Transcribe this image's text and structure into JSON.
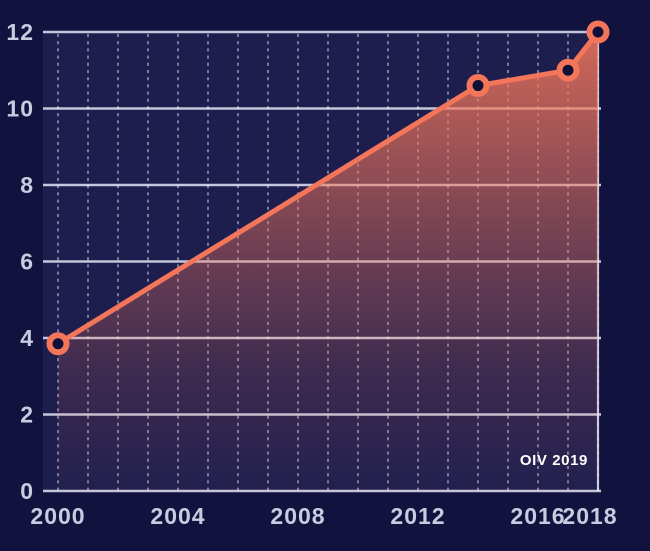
{
  "chart_data": {
    "type": "area",
    "title": "",
    "source": "OIV 2019",
    "points": [
      {
        "year": 2000,
        "value": 3.85
      },
      {
        "year": 2014,
        "value": 10.6
      },
      {
        "year": 2017,
        "value": 11.0
      },
      {
        "year": 2018,
        "value": 12.0
      }
    ],
    "xlim": [
      2000,
      2018
    ],
    "ylim": [
      0,
      12
    ],
    "y_ticks": [
      0,
      2,
      4,
      6,
      8,
      10,
      12
    ],
    "x_ticks": [
      {
        "year": 2000,
        "label": "2000"
      },
      {
        "year": 2004,
        "label": "2004"
      },
      {
        "year": 2008,
        "label": "2008"
      },
      {
        "year": 2012,
        "label": "2012"
      },
      {
        "year": 2016,
        "label": "2016"
      },
      {
        "year": 2018,
        "label": "2018"
      }
    ],
    "x_gridline_step_years": 1,
    "grid": {
      "horizontal": "solid",
      "vertical": "dashed",
      "legend_position": "none"
    },
    "colors": {
      "page_background": "#12123e",
      "plot_background": "#1e1e4e",
      "line": "#f4765a",
      "marker_ring": "#f4765a",
      "marker_hole": "#101038",
      "area_top": "#f4765a",
      "grid_solid": "rgba(234,236,250,0.82)",
      "grid_dashed": "rgba(255,255,255,0.42)",
      "tick_label": "#c9cbe0",
      "source_label": "#ffffff"
    }
  }
}
